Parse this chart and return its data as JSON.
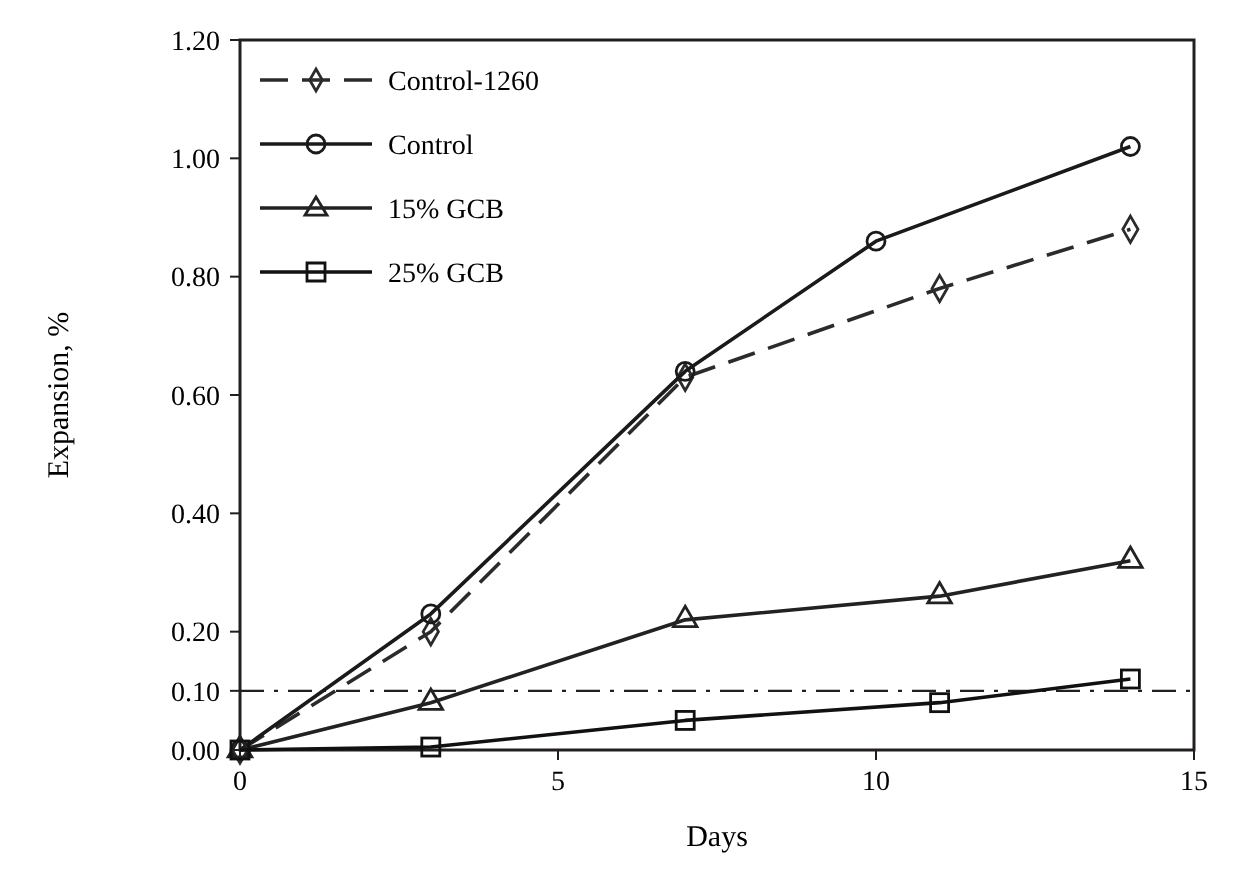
{
  "chart_data": {
    "type": "line",
    "xlabel": "Days",
    "ylabel": "Expansion, %",
    "xlim": [
      0,
      15
    ],
    "ylim": [
      0,
      1.2
    ],
    "xticks": [
      0,
      5,
      10,
      15
    ],
    "yticks": [
      {
        "value": 0,
        "label": "0.00"
      },
      {
        "value": 0.1,
        "label": "0.10"
      },
      {
        "value": 0.2,
        "label": "0.20"
      },
      {
        "value": 0.4,
        "label": "0.40"
      },
      {
        "value": 0.6,
        "label": "0.60"
      },
      {
        "value": 0.8,
        "label": "0.80"
      },
      {
        "value": 1.0,
        "label": "1.00"
      },
      {
        "value": 1.2,
        "label": "1.20"
      }
    ],
    "grid": false,
    "legend": "top left",
    "series": [
      {
        "name": "Control-1260",
        "color": "#2b2b2b",
        "marker": "diamond",
        "line_style": "dashed",
        "x": [
          0,
          3,
          7,
          11,
          14
        ],
        "values": [
          0,
          0.2,
          0.63,
          0.78,
          0.88
        ]
      },
      {
        "name": "Control",
        "color": "#1a1a1a",
        "marker": "circle",
        "line_style": "solid",
        "x": [
          0,
          3,
          7,
          10,
          14
        ],
        "values": [
          0,
          0.23,
          0.64,
          0.86,
          1.02
        ]
      },
      {
        "name": "15% GCB",
        "color": "#222222",
        "marker": "triangle",
        "line_style": "solid",
        "x": [
          0,
          3,
          7,
          11,
          14
        ],
        "values": [
          0,
          0.08,
          0.22,
          0.26,
          0.32
        ]
      },
      {
        "name": "25% GCB",
        "color": "#111111",
        "marker": "square",
        "line_style": "solid",
        "x": [
          0,
          3,
          7,
          11,
          14
        ],
        "values": [
          0,
          0.005,
          0.05,
          0.08,
          0.12
        ]
      }
    ],
    "ref_lines": [
      {
        "axis": "y",
        "value": 0.1,
        "line_style": "dashdot",
        "color": "#231f20"
      }
    ]
  }
}
